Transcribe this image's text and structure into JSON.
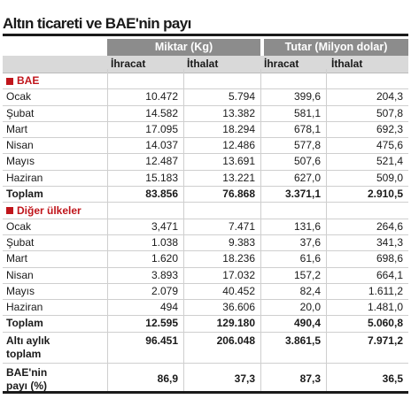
{
  "title": "Altın ticareti ve BAE'nin payı",
  "groups": {
    "miktar": "Miktar (Kg)",
    "tutar": "Tutar (Milyon dolar)"
  },
  "subheads": [
    "İhracat",
    "İthalat",
    "İhracat",
    "İthalat"
  ],
  "sections": [
    {
      "name": "BAE",
      "rows": [
        {
          "label": "Ocak",
          "v": [
            "10.472",
            "5.794",
            "399,6",
            "204,3"
          ]
        },
        {
          "label": "Şubat",
          "v": [
            "14.582",
            "13.382",
            "581,1",
            "507,8"
          ]
        },
        {
          "label": "Mart",
          "v": [
            "17.095",
            "18.294",
            "678,1",
            "692,3"
          ]
        },
        {
          "label": "Nisan",
          "v": [
            "14.037",
            "12.486",
            "577,8",
            "475,6"
          ]
        },
        {
          "label": "Mayıs",
          "v": [
            "12.487",
            "13.691",
            "507,6",
            "521,4"
          ]
        },
        {
          "label": "Haziran",
          "v": [
            "15.183",
            "13.221",
            "627,0",
            "509,0"
          ]
        }
      ],
      "total": {
        "label": "Toplam",
        "v": [
          "83.856",
          "76.868",
          "3.371,1",
          "2.910,5"
        ]
      }
    },
    {
      "name": "Diğer ülkeler",
      "rows": [
        {
          "label": "Ocak",
          "v": [
            "3,471",
            "7.471",
            "131,6",
            "264,6"
          ]
        },
        {
          "label": "Şubat",
          "v": [
            "1.038",
            "9.383",
            "37,6",
            "341,3"
          ]
        },
        {
          "label": "Mart",
          "v": [
            "1.620",
            "18.236",
            "61,6",
            "698,6"
          ]
        },
        {
          "label": "Nisan",
          "v": [
            "3.893",
            "17.032",
            "157,2",
            "664,1"
          ]
        },
        {
          "label": "Mayıs",
          "v": [
            "2.079",
            "40.452",
            "82,4",
            "1.611,2"
          ]
        },
        {
          "label": "Haziran",
          "v": [
            "494",
            "36.606",
            "20,0",
            "1.481,0"
          ]
        }
      ],
      "total": {
        "label": "Toplam",
        "v": [
          "12.595",
          "129.180",
          "490,4",
          "5.060,8"
        ]
      }
    }
  ],
  "six_month": {
    "label1": "Altı aylık",
    "label2": "toplam",
    "v": [
      "96.451",
      "206.048",
      "3.861,5",
      "7.971,2"
    ]
  },
  "share": {
    "label1": "BAE'nin",
    "label2": "payı (%)",
    "v": [
      "86,9",
      "37,3",
      "87,3",
      "36,5"
    ]
  }
}
